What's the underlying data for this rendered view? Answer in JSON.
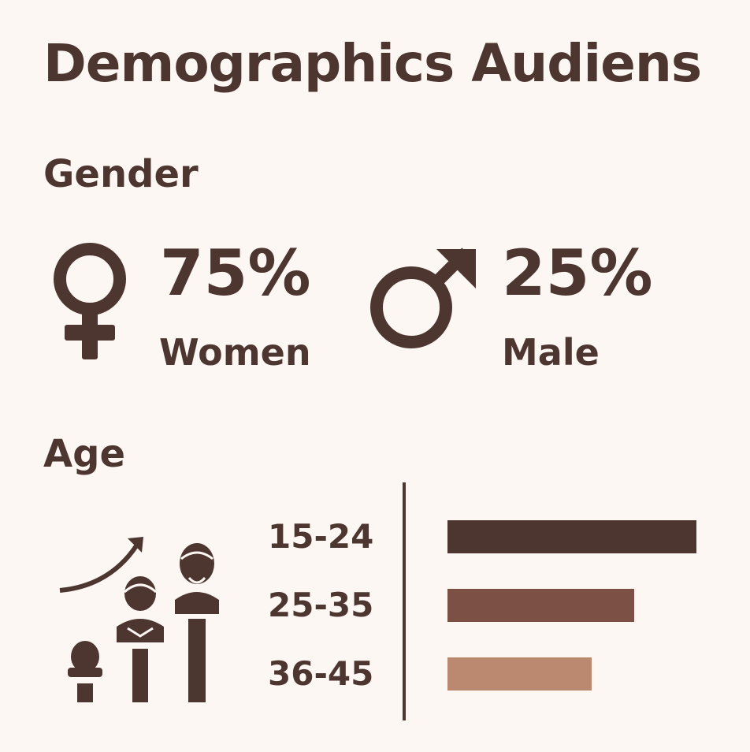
{
  "title": "Demographics Audiens",
  "gender": {
    "heading": "Gender",
    "women": {
      "percent": "75%",
      "label": "Women",
      "icon": "female-symbol-icon"
    },
    "male": {
      "percent": "25%",
      "label": "Male",
      "icon": "male-symbol-icon"
    }
  },
  "age": {
    "heading": "Age",
    "icon": "age-growth-people-icon"
  },
  "colors": {
    "background": "#fdf7f4",
    "text": "#4e3630",
    "bar_15_24": "#4e3630",
    "bar_25_35": "#7d5046",
    "bar_36_45": "#bb8870"
  },
  "chart_data": {
    "type": "bar",
    "orientation": "horizontal",
    "categories": [
      "15-24",
      "25-35",
      "36-45"
    ],
    "values": [
      100,
      75,
      58
    ],
    "colors": [
      "#4e3630",
      "#7d5046",
      "#bb8870"
    ],
    "xlim": [
      0,
      100
    ]
  }
}
